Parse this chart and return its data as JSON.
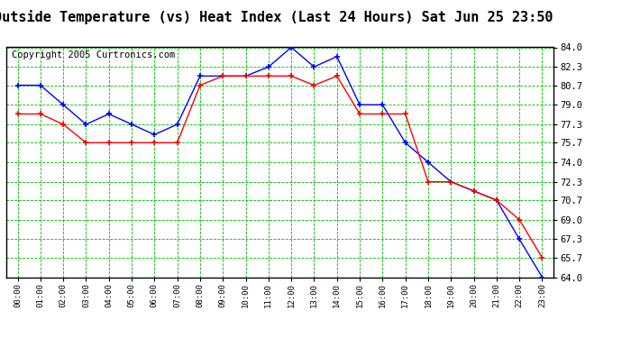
{
  "title": "Outside Temperature (vs) Heat Index (Last 24 Hours) Sat Jun 25 23:50",
  "copyright": "Copyright 2005 Curtronics.com",
  "x_labels": [
    "00:00",
    "01:00",
    "02:00",
    "03:00",
    "04:00",
    "05:00",
    "06:00",
    "07:00",
    "08:00",
    "09:00",
    "10:00",
    "11:00",
    "12:00",
    "13:00",
    "14:00",
    "15:00",
    "16:00",
    "17:00",
    "18:00",
    "19:00",
    "20:00",
    "21:00",
    "22:00",
    "23:00"
  ],
  "blue_data": [
    80.7,
    80.7,
    79.0,
    77.3,
    78.2,
    77.3,
    76.4,
    77.3,
    81.5,
    81.5,
    81.5,
    82.3,
    84.0,
    82.3,
    83.2,
    79.0,
    79.0,
    75.7,
    74.0,
    72.3,
    71.5,
    70.7,
    67.3,
    64.0
  ],
  "red_data": [
    78.2,
    78.2,
    77.3,
    75.7,
    75.7,
    75.7,
    75.7,
    75.7,
    80.7,
    81.5,
    81.5,
    81.5,
    81.5,
    80.7,
    81.5,
    78.2,
    78.2,
    78.2,
    72.3,
    72.3,
    71.5,
    70.7,
    69.0,
    65.7
  ],
  "blue_color": "#0000ff",
  "red_color": "#ff0000",
  "bg_color": "#ffffff",
  "grid_color": "#00bb00",
  "ylim_min": 64.0,
  "ylim_max": 84.0,
  "yticks": [
    64.0,
    65.7,
    67.3,
    69.0,
    70.7,
    72.3,
    74.0,
    75.7,
    77.3,
    79.0,
    80.7,
    82.3,
    84.0
  ],
  "title_fontsize": 11,
  "copyright_fontsize": 7.5
}
